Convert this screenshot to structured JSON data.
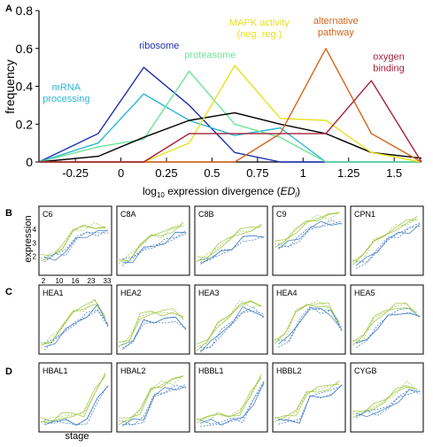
{
  "panel_labels": {
    "a": "A",
    "b": "B",
    "c": "C",
    "d": "D"
  },
  "chart_data": [
    {
      "type": "line",
      "ylabel": "frequency",
      "xlabel_main": "log",
      "xlabel_sub": "10",
      "xlabel_rest": " expression divergence (",
      "xlabel_var": "ED",
      "xlabel_var_sub": "i",
      "xlabel_close": ")",
      "xlim": [
        -0.45,
        1.65
      ],
      "ylim": [
        0,
        0.8
      ],
      "x_ticks": [
        -0.25,
        0,
        0.25,
        0.5,
        0.75,
        1,
        1.25,
        1.5
      ],
      "x_tick_labels": [
        "-0.25",
        "0",
        "0.25",
        "0.5",
        "0.75",
        "1",
        "1.25",
        "1.5"
      ],
      "y_ticks": [
        0,
        0.2,
        0.4,
        0.6,
        0.8
      ],
      "y_tick_labels": [
        "0",
        "0.2",
        "0.4",
        "0.6",
        "0.8"
      ],
      "x": [
        -0.45,
        -0.125,
        0.125,
        0.375,
        0.625,
        0.875,
        1.125,
        1.375,
        1.65
      ],
      "series": [
        {
          "name": "ribosome",
          "color": "#1f2fb0",
          "values": [
            0,
            0.15,
            0.5,
            0.3,
            0.05,
            0,
            0,
            0,
            0
          ]
        },
        {
          "name": "mRNA processing",
          "color": "#2bb6d6",
          "values": [
            0,
            0.1,
            0.36,
            0.22,
            0.14,
            0.18,
            0,
            0,
            0
          ]
        },
        {
          "name": "proteasome",
          "color": "#6de39a",
          "values": [
            0,
            0.08,
            0.12,
            0.48,
            0.2,
            0.13,
            0,
            0,
            0
          ]
        },
        {
          "name": "",
          "color": "#000000",
          "values": [
            0,
            0.03,
            0.13,
            0.22,
            0.26,
            0.2,
            0.15,
            0.05,
            0.02
          ]
        },
        {
          "name": "MAPK activity (neg. reg.)",
          "color": "#e8e020",
          "values": [
            0,
            0,
            0,
            0.1,
            0.51,
            0.23,
            0.22,
            0.05,
            0
          ]
        },
        {
          "name": "alternative pathway",
          "color": "#d4651a",
          "values": [
            0,
            0,
            0,
            0,
            0,
            0.15,
            0.6,
            0.15,
            0
          ]
        },
        {
          "name": "oxygen binding",
          "color": "#a8203a",
          "values": [
            0,
            0,
            0,
            0.15,
            0.15,
            0.15,
            0.15,
            0.43,
            0
          ]
        }
      ],
      "series_label_lines": {
        "ribosome": [
          "ribosome"
        ],
        "mRNA processing": [
          "mRNA",
          "processing"
        ],
        "proteasome": [
          "proteasome"
        ],
        "MAPK activity (neg. reg.)": [
          "MAPK activity",
          "(neg. reg.)"
        ],
        "alternative pathway": [
          "alternative",
          "pathway"
        ],
        "oxygen binding": [
          "oxygen",
          "binding"
        ]
      }
    },
    {
      "type": "line",
      "panel": "B",
      "ylabel": "expression",
      "x_tick_labels": [
        "2",
        "10",
        "16",
        "23",
        "33"
      ],
      "y_tick_labels": [
        "2",
        "3",
        "4"
      ],
      "series_colors": [
        "#9bc53d",
        "#3b78c2"
      ],
      "titles": [
        "C6",
        "C8A",
        "C8B",
        "C9",
        "CPN1"
      ],
      "shapes": [
        [
          1.8,
          2.0,
          2.4,
          3.4,
          3.8,
          3.9,
          4.0
        ],
        [
          1.6,
          1.8,
          2.6,
          3.0,
          3.2,
          3.7,
          4.1
        ],
        [
          1.7,
          1.9,
          2.4,
          2.9,
          3.5,
          3.6,
          3.8
        ],
        [
          2.8,
          3.0,
          3.5,
          4.4,
          4.5,
          4.6,
          4.7
        ],
        [
          1.4,
          1.8,
          2.7,
          3.4,
          3.8,
          4.1,
          4.4
        ]
      ]
    },
    {
      "type": "line",
      "panel": "C",
      "series_colors": [
        "#9bc53d",
        "#3b78c2"
      ],
      "titles": [
        "HEA1",
        "HEA2",
        "HEA3",
        "HEA4",
        "HEA5"
      ],
      "shapes": [
        [
          1.2,
          1.6,
          2.4,
          3.2,
          3.6,
          4.2,
          3.0
        ],
        [
          1.2,
          1.6,
          3.1,
          3.3,
          3.3,
          3.4,
          2.8
        ],
        [
          1.0,
          1.4,
          2.4,
          3.2,
          4.0,
          4.0,
          3.6
        ],
        [
          1.4,
          1.8,
          3.3,
          4.1,
          4.0,
          3.8,
          2.4
        ],
        [
          1.3,
          1.7,
          2.8,
          3.4,
          3.8,
          3.9,
          3.3
        ]
      ]
    },
    {
      "type": "line",
      "panel": "D",
      "xlabel": "stage",
      "series_colors": [
        "#9bc53d",
        "#3b78c2"
      ],
      "titles": [
        "HBAL1",
        "HBAL2",
        "HBBL1",
        "HBBL2",
        "CYGB"
      ],
      "shapes": [
        [
          1.4,
          1.4,
          1.5,
          1.5,
          1.6,
          3.2,
          4.4
        ],
        [
          1.3,
          1.4,
          1.7,
          3.6,
          3.8,
          4.0,
          4.2
        ],
        [
          1.3,
          1.4,
          1.5,
          1.6,
          1.7,
          3.0,
          4.3
        ],
        [
          1.4,
          1.5,
          1.6,
          3.2,
          3.4,
          3.6,
          4.0
        ],
        [
          1.8,
          2.0,
          2.2,
          2.4,
          3.2,
          3.8,
          3.6
        ]
      ]
    }
  ]
}
